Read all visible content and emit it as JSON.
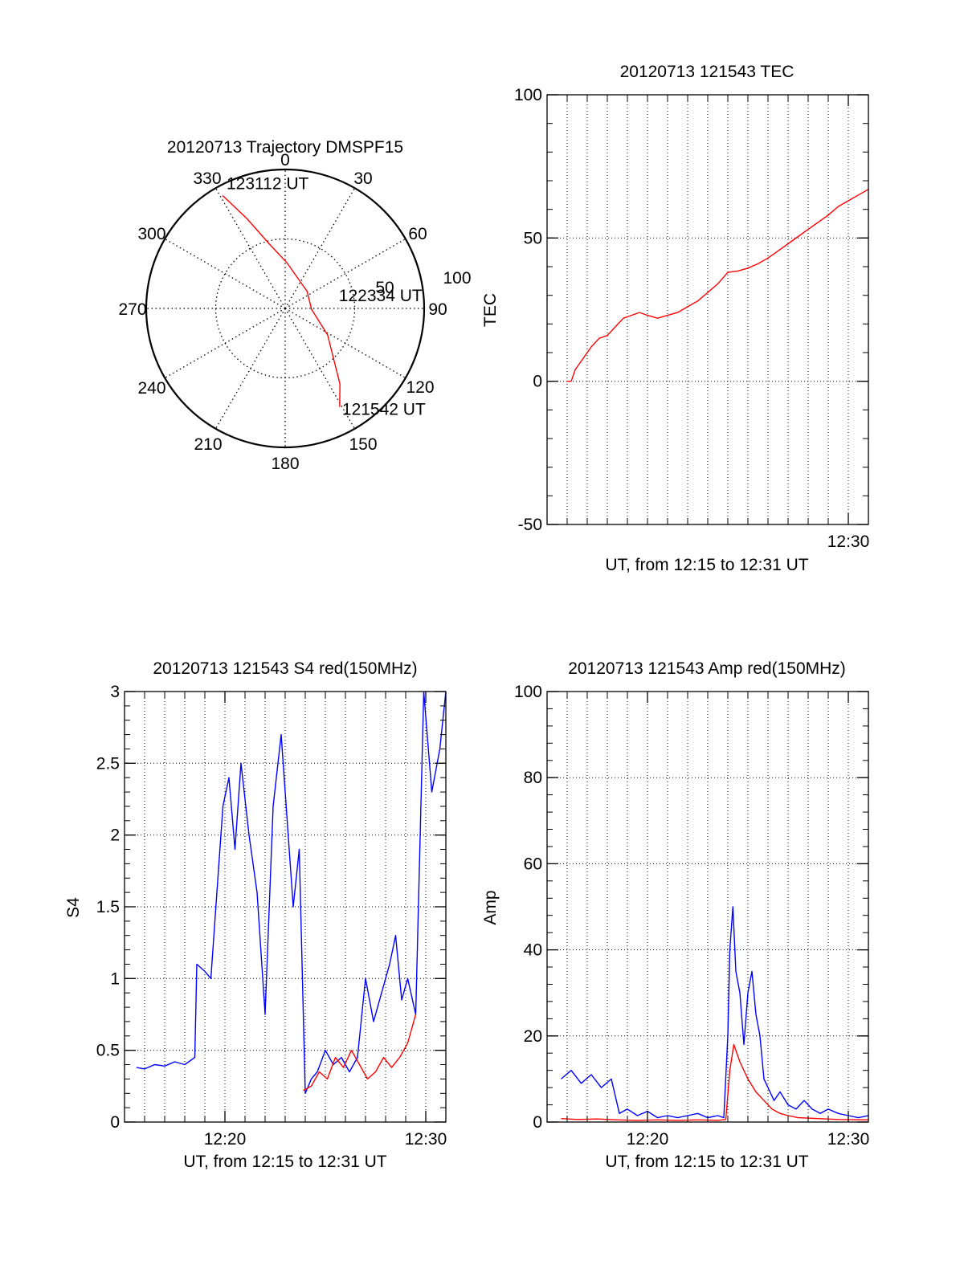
{
  "chart_data": [
    {
      "type": "polar",
      "title": "20120713 Trajectory DMSPF15",
      "azimuth_labels": [
        "0",
        "30",
        "60",
        "90",
        "120",
        "150",
        "180",
        "210",
        "240",
        "270",
        "300",
        "330"
      ],
      "radius_labels": [
        "50",
        "100"
      ],
      "radius_range": [
        0,
        100
      ],
      "grid": true,
      "trajectory_color": "#ff0000",
      "trajectory": [
        {
          "az": 331,
          "r": 93
        },
        {
          "az": 337,
          "r": 70
        },
        {
          "az": 346,
          "r": 48
        },
        {
          "az": 2,
          "r": 33
        },
        {
          "az": 52,
          "r": 20
        },
        {
          "az": 92,
          "r": 19
        },
        {
          "az": 122,
          "r": 36
        },
        {
          "az": 144,
          "r": 67
        },
        {
          "az": 151,
          "r": 81
        }
      ],
      "annotations": [
        {
          "text": "123112 UT",
          "az": 331,
          "r": 93
        },
        {
          "text": "122334 UT",
          "az": 92,
          "r": 19
        },
        {
          "text": "121542 UT",
          "az": 151,
          "r": 81
        }
      ]
    },
    {
      "type": "line",
      "title": "20120713 121543 TEC",
      "xlabel": "UT, from 12:15 to 12:31 UT",
      "ylabel": "TEC",
      "xlim": [
        15.0,
        31.0
      ],
      "ylim": [
        -50,
        100
      ],
      "xticks": [
        {
          "value": 30,
          "label": "12:30"
        }
      ],
      "yticks": [
        -50,
        0,
        50,
        100
      ],
      "grid": true,
      "series": [
        {
          "color": "#ff0000",
          "x": [
            15.95,
            16.2,
            16.4,
            16.8,
            17.2,
            17.6,
            18.0,
            18.4,
            18.8,
            19.2,
            19.6,
            20.0,
            20.5,
            21.0,
            21.5,
            22.0,
            22.5,
            23.0,
            23.5,
            24.0,
            24.5,
            25.0,
            25.5,
            26.0,
            26.5,
            27.0,
            27.5,
            28.0,
            28.5,
            29.0,
            29.5,
            30.0,
            30.5,
            31.0
          ],
          "y": [
            0,
            0,
            4,
            8,
            12,
            15,
            16,
            19,
            22,
            23,
            24,
            23,
            22,
            23,
            24,
            26,
            28,
            31,
            34,
            38,
            38.5,
            39.5,
            41,
            43,
            45.5,
            48,
            50.5,
            53,
            55.5,
            58,
            61,
            63,
            65,
            67
          ]
        }
      ]
    },
    {
      "type": "line",
      "title": "20120713 121543 S4 red(150MHz)",
      "xlabel": "UT, from 12:15 to 12:31 UT",
      "ylabel": "S4",
      "xlim": [
        15.0,
        31.0
      ],
      "ylim": [
        0,
        3
      ],
      "xticks": [
        {
          "value": 20,
          "label": "12:20"
        },
        {
          "value": 30,
          "label": "12:30"
        }
      ],
      "yticks": [
        {
          "value": 0,
          "label": "0"
        },
        {
          "value": 0.5,
          "label": "0.5"
        },
        {
          "value": 1,
          "label": "1"
        },
        {
          "value": 1.5,
          "label": "1.5"
        },
        {
          "value": 2,
          "label": "2"
        },
        {
          "value": 2.5,
          "label": "2.5"
        },
        {
          "value": 3,
          "label": "3"
        }
      ],
      "grid": true,
      "series": [
        {
          "color": "#0000ff",
          "x": [
            15.6,
            16.0,
            16.5,
            17.0,
            17.5,
            18.0,
            18.5,
            18.6,
            19.0,
            19.3,
            19.6,
            19.9,
            20.2,
            20.5,
            20.8,
            21.2,
            21.6,
            22.0,
            22.4,
            22.8,
            23.1,
            23.4,
            23.7,
            24.0,
            24.3,
            24.6,
            25.0,
            25.4,
            25.8,
            26.2,
            26.6,
            27.0,
            27.4,
            27.8,
            28.2,
            28.5,
            28.8,
            29.1,
            29.5,
            29.9,
            30.3,
            30.7,
            31.0
          ],
          "y": [
            0.38,
            0.37,
            0.4,
            0.39,
            0.42,
            0.4,
            0.45,
            1.1,
            1.05,
            1.0,
            1.6,
            2.2,
            2.4,
            1.9,
            2.5,
            2.0,
            1.6,
            0.75,
            2.2,
            2.7,
            2.1,
            1.5,
            1.9,
            0.2,
            0.3,
            0.35,
            0.5,
            0.4,
            0.45,
            0.35,
            0.45,
            1.0,
            0.7,
            0.9,
            1.1,
            1.3,
            0.85,
            1.0,
            0.75,
            3.0,
            2.3,
            2.6,
            3.0
          ]
        },
        {
          "color": "#ff0000",
          "x": [
            23.9,
            24.3,
            24.7,
            25.1,
            25.5,
            25.9,
            26.3,
            26.7,
            27.1,
            27.5,
            27.9,
            28.3,
            28.7,
            29.1,
            29.5
          ],
          "y": [
            0.22,
            0.25,
            0.35,
            0.3,
            0.45,
            0.38,
            0.5,
            0.4,
            0.3,
            0.35,
            0.45,
            0.38,
            0.45,
            0.55,
            0.75
          ]
        }
      ]
    },
    {
      "type": "line",
      "title": "20120713 121543 Amp red(150MHz)",
      "xlabel": "UT, from 12:15 to 12:31 UT",
      "ylabel": "Amp",
      "xlim": [
        15.0,
        31.0
      ],
      "ylim": [
        0,
        100
      ],
      "xticks": [
        {
          "value": 20,
          "label": "12:20"
        },
        {
          "value": 30,
          "label": "12:30"
        }
      ],
      "yticks": [
        0,
        20,
        40,
        60,
        80,
        100
      ],
      "grid": true,
      "series": [
        {
          "color": "#0000ff",
          "x": [
            15.7,
            16.2,
            16.7,
            17.2,
            17.7,
            18.2,
            18.6,
            19.0,
            19.5,
            20.0,
            20.5,
            21.0,
            21.5,
            22.0,
            22.5,
            23.0,
            23.5,
            23.8,
            24.0,
            24.1,
            24.25,
            24.4,
            24.6,
            24.8,
            25.0,
            25.2,
            25.4,
            25.6,
            25.8,
            26.0,
            26.3,
            26.6,
            27.0,
            27.4,
            27.8,
            28.2,
            28.6,
            29.0,
            29.5,
            30.0,
            30.5,
            31.0
          ],
          "y": [
            10,
            12,
            9,
            11,
            8,
            10,
            2,
            3,
            1.5,
            2.5,
            1,
            1.5,
            1,
            1.5,
            2,
            1,
            1.5,
            1,
            20,
            40,
            50,
            35,
            30,
            18,
            30,
            35,
            25,
            20,
            10,
            8,
            5,
            7,
            4,
            3,
            5,
            3,
            2,
            3,
            2,
            1.5,
            1,
            1.5
          ]
        },
        {
          "color": "#ff0000",
          "x": [
            15.7,
            16.5,
            17.5,
            18.5,
            19.5,
            20.5,
            21.5,
            22.5,
            23.5,
            23.9,
            24.1,
            24.3,
            24.6,
            25.0,
            25.4,
            25.8,
            26.2,
            26.6,
            27.0,
            27.5,
            28.5,
            29.5,
            31.0
          ],
          "y": [
            0.8,
            0.6,
            0.7,
            0.5,
            0.4,
            0.5,
            0.4,
            0.5,
            0.4,
            0.6,
            12,
            18,
            14,
            10,
            7,
            5,
            3,
            2,
            1.5,
            1,
            0.8,
            0.6,
            0.5
          ]
        }
      ]
    }
  ]
}
